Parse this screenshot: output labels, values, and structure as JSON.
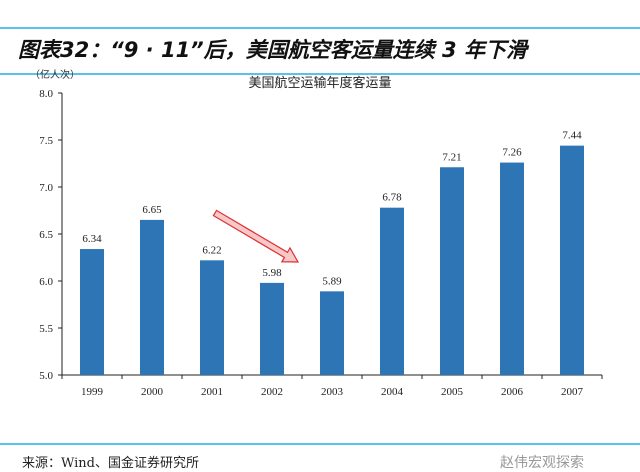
{
  "header": {
    "title": "图表32：“9 · 11”后，美国航空客运量连续 3 年下滑"
  },
  "footer": {
    "source": "来源：Wind、国金证券研究所",
    "watermark": "赵伟宏观探索"
  },
  "chart_data": {
    "type": "bar",
    "title": "美国航空运输年度客运量",
    "ylabel": "（亿人次）",
    "xlabel": "",
    "categories": [
      "1999",
      "2000",
      "2001",
      "2002",
      "2003",
      "2004",
      "2005",
      "2006",
      "2007"
    ],
    "values": [
      6.34,
      6.65,
      6.22,
      5.98,
      5.89,
      6.78,
      7.21,
      7.26,
      7.44
    ],
    "ylim": [
      5.0,
      8.0
    ],
    "yticks": [
      "5.0",
      "5.5",
      "6.0",
      "6.5",
      "7.0",
      "7.5",
      "8.0"
    ],
    "grid": false,
    "bar_color": "#2e75b6",
    "annotation": {
      "type": "arrow",
      "from": "2001",
      "to": "2003",
      "color": "#e03030"
    }
  }
}
